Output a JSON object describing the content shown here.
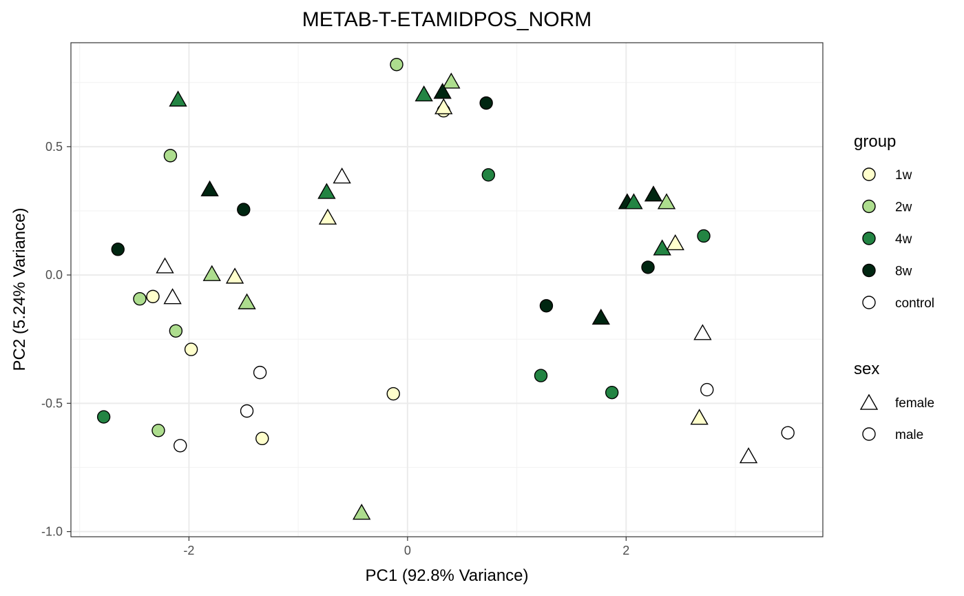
{
  "chart_data": {
    "type": "scatter",
    "title": "METAB-T-ETAMIDPOS_NORM",
    "xlabel": "PC1 (92.8% Variance)",
    "ylabel": "PC2 (5.24% Variance)",
    "xlim": [
      -3.08,
      3.8
    ],
    "ylim": [
      -1.02,
      0.905
    ],
    "x_ticks": [
      -2,
      0,
      2
    ],
    "y_ticks": [
      -1.0,
      -0.5,
      0.0,
      0.5
    ],
    "x_tick_labels": [
      "-2",
      "0",
      "2"
    ],
    "y_tick_labels": [
      "-1.0",
      "-0.5",
      "0.0",
      "0.5"
    ],
    "grid": true,
    "legend_position": "right",
    "legend": {
      "group": {
        "title": "group",
        "items": [
          {
            "label": "1w",
            "color": "#ffffcc"
          },
          {
            "label": "2w",
            "color": "#addd8e"
          },
          {
            "label": "4w",
            "color": "#238443"
          },
          {
            "label": "8w",
            "color": "#002611"
          },
          {
            "label": "control",
            "color": "#ffffff"
          }
        ]
      },
      "sex": {
        "title": "sex",
        "items": [
          {
            "label": "female",
            "shape": "triangle"
          },
          {
            "label": "male",
            "shape": "circle"
          }
        ]
      }
    },
    "points": [
      {
        "x": -0.1,
        "y": 0.82,
        "group": "2w",
        "sex": "male"
      },
      {
        "x": 0.4,
        "y": 0.75,
        "group": "2w",
        "sex": "female"
      },
      {
        "x": 0.15,
        "y": 0.7,
        "group": "4w",
        "sex": "female"
      },
      {
        "x": 0.32,
        "y": 0.71,
        "group": "8w",
        "sex": "female"
      },
      {
        "x": 0.33,
        "y": 0.64,
        "group": "1w",
        "sex": "male"
      },
      {
        "x": 0.33,
        "y": 0.65,
        "group": "1w",
        "sex": "female"
      },
      {
        "x": 0.72,
        "y": 0.67,
        "group": "8w",
        "sex": "male"
      },
      {
        "x": -2.1,
        "y": 0.68,
        "group": "4w",
        "sex": "female"
      },
      {
        "x": -2.17,
        "y": 0.465,
        "group": "2w",
        "sex": "male"
      },
      {
        "x": -1.81,
        "y": 0.33,
        "group": "8w",
        "sex": "female"
      },
      {
        "x": -1.5,
        "y": 0.255,
        "group": "8w",
        "sex": "male"
      },
      {
        "x": -0.6,
        "y": 0.38,
        "group": "control",
        "sex": "female"
      },
      {
        "x": -0.74,
        "y": 0.32,
        "group": "4w",
        "sex": "female"
      },
      {
        "x": -0.73,
        "y": 0.22,
        "group": "1w",
        "sex": "female"
      },
      {
        "x": 0.74,
        "y": 0.39,
        "group": "4w",
        "sex": "male"
      },
      {
        "x": -2.65,
        "y": 0.1,
        "group": "8w",
        "sex": "male"
      },
      {
        "x": -2.22,
        "y": 0.03,
        "group": "control",
        "sex": "female"
      },
      {
        "x": -1.79,
        "y": 0.0,
        "group": "2w",
        "sex": "female"
      },
      {
        "x": -1.58,
        "y": -0.01,
        "group": "1w",
        "sex": "female"
      },
      {
        "x": -1.47,
        "y": -0.11,
        "group": "2w",
        "sex": "female"
      },
      {
        "x": -2.45,
        "y": -0.093,
        "group": "2w",
        "sex": "male"
      },
      {
        "x": -2.33,
        "y": -0.084,
        "group": "1w",
        "sex": "male"
      },
      {
        "x": -2.15,
        "y": -0.09,
        "group": "control",
        "sex": "female"
      },
      {
        "x": -2.12,
        "y": -0.218,
        "group": "2w",
        "sex": "male"
      },
      {
        "x": -1.98,
        "y": -0.29,
        "group": "1w",
        "sex": "male"
      },
      {
        "x": -1.35,
        "y": -0.38,
        "group": "control",
        "sex": "male"
      },
      {
        "x": -1.47,
        "y": -0.53,
        "group": "control",
        "sex": "male"
      },
      {
        "x": -1.33,
        "y": -0.637,
        "group": "1w",
        "sex": "male"
      },
      {
        "x": -2.78,
        "y": -0.553,
        "group": "4w",
        "sex": "male"
      },
      {
        "x": -2.28,
        "y": -0.606,
        "group": "2w",
        "sex": "male"
      },
      {
        "x": -2.08,
        "y": -0.665,
        "group": "control",
        "sex": "male"
      },
      {
        "x": -0.42,
        "y": -0.93,
        "group": "2w",
        "sex": "female"
      },
      {
        "x": -0.13,
        "y": -0.463,
        "group": "1w",
        "sex": "male"
      },
      {
        "x": 2.01,
        "y": 0.28,
        "group": "8w",
        "sex": "female"
      },
      {
        "x": 2.07,
        "y": 0.28,
        "group": "4w",
        "sex": "female"
      },
      {
        "x": 2.25,
        "y": 0.31,
        "group": "8w",
        "sex": "female"
      },
      {
        "x": 2.37,
        "y": 0.28,
        "group": "2w",
        "sex": "female"
      },
      {
        "x": 2.71,
        "y": 0.152,
        "group": "4w",
        "sex": "male"
      },
      {
        "x": 2.33,
        "y": 0.1,
        "group": "4w",
        "sex": "female"
      },
      {
        "x": 2.45,
        "y": 0.12,
        "group": "1w",
        "sex": "female"
      },
      {
        "x": 2.2,
        "y": 0.03,
        "group": "8w",
        "sex": "male"
      },
      {
        "x": 1.27,
        "y": -0.12,
        "group": "8w",
        "sex": "male"
      },
      {
        "x": 1.77,
        "y": -0.17,
        "group": "8w",
        "sex": "female"
      },
      {
        "x": 2.7,
        "y": -0.23,
        "group": "control",
        "sex": "female"
      },
      {
        "x": 1.22,
        "y": -0.392,
        "group": "4w",
        "sex": "male"
      },
      {
        "x": 1.87,
        "y": -0.458,
        "group": "4w",
        "sex": "male"
      },
      {
        "x": 2.74,
        "y": -0.447,
        "group": "control",
        "sex": "male"
      },
      {
        "x": 2.67,
        "y": -0.56,
        "group": "1w",
        "sex": "female"
      },
      {
        "x": 3.48,
        "y": -0.615,
        "group": "control",
        "sex": "male"
      },
      {
        "x": 3.12,
        "y": -0.71,
        "group": "control",
        "sex": "female"
      }
    ]
  }
}
